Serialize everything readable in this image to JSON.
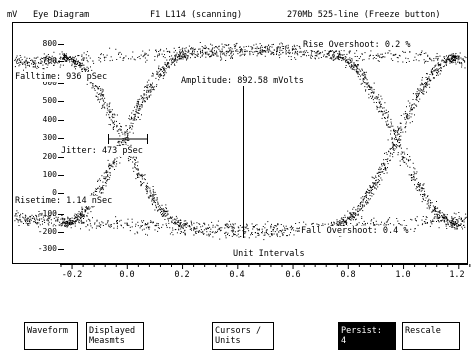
{
  "header": {
    "unit": "mV",
    "title": "Eye Diagram",
    "source": "F1 L114 (scanning)",
    "mode": "270Mb 525-line (Freeze button)"
  },
  "measurements": {
    "rise_overshoot": "Rise Overshoot: 0.2 %",
    "fall_time": "Falltime: 936 pSec",
    "amplitude": "Amplitude: 892.58 mVolts",
    "jitter": "Jitter: 473 pSec",
    "rise_time": "Risetime: 1.14 nSec",
    "fall_overshoot": "Fall Overshoot: 0.4 %"
  },
  "axes": {
    "xlabel": "Unit Intervals",
    "y_ticks": [
      "800",
      "700",
      "600",
      "500",
      "400",
      "300",
      "200",
      "100",
      "0",
      "-100",
      "-200",
      "-300"
    ],
    "x_ticks": [
      "-0.2",
      "0.0",
      "0.2",
      "0.4",
      "0.6",
      "0.8",
      "1.0",
      "1.2"
    ]
  },
  "softkeys": [
    {
      "label": "Waveform",
      "active": false
    },
    {
      "label": "Displayed\nMeasmts",
      "active": false
    },
    {
      "label": "Cursors /\nUnits",
      "active": false
    },
    {
      "label": "Persist:\n4",
      "active": true
    },
    {
      "label": "Rescale",
      "active": false
    }
  ],
  "colors": {
    "trace": "#000000",
    "background": "#ffffff",
    "active_key_bg": "#000000",
    "active_key_text": "#ffffff"
  }
}
